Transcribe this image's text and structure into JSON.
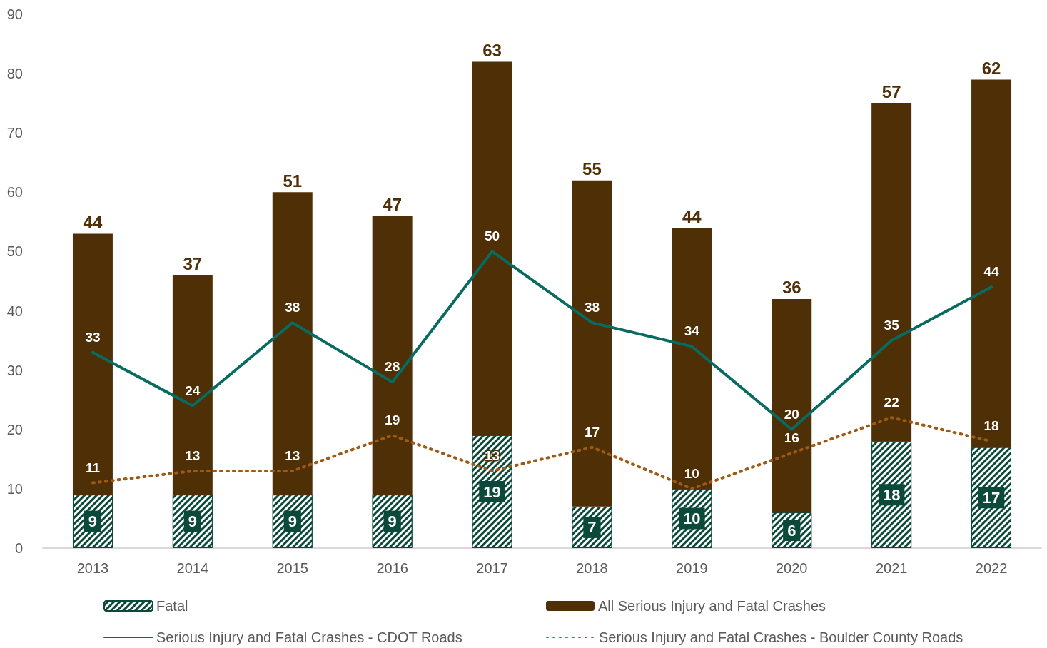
{
  "chart_data": {
    "type": "bar",
    "stacked": true,
    "categories": [
      "2013",
      "2014",
      "2015",
      "2016",
      "2017",
      "2018",
      "2019",
      "2020",
      "2021",
      "2022"
    ],
    "series": [
      {
        "name": "Fatal",
        "color": "#0b4a3a",
        "values": [
          9,
          9,
          9,
          9,
          19,
          7,
          10,
          6,
          18,
          17
        ]
      },
      {
        "name": "All Serious Injury and Fatal Crashes",
        "color": "#4f2f06",
        "values": [
          44,
          37,
          51,
          47,
          63,
          55,
          44,
          36,
          57,
          62
        ]
      },
      {
        "name": "Serious Injury and Fatal Crashes - CDOT Roads",
        "type": "line",
        "color": "#076b60",
        "line_style": "solid",
        "values": [
          33,
          24,
          38,
          28,
          50,
          38,
          34,
          20,
          35,
          44
        ]
      },
      {
        "name": "Serious Injury and Fatal Crashes - Boulder County Roads",
        "type": "line",
        "color": "#9c5a14",
        "line_style": "dotted",
        "values": [
          11,
          13,
          13,
          19,
          13,
          17,
          10,
          16,
          22,
          18
        ]
      }
    ],
    "ylim": [
      0,
      90
    ],
    "yticks": [
      0,
      10,
      20,
      30,
      40,
      50,
      60,
      70,
      80,
      90
    ],
    "grid": false,
    "legend": "bottom",
    "marker": "none",
    "data_labels": true
  }
}
